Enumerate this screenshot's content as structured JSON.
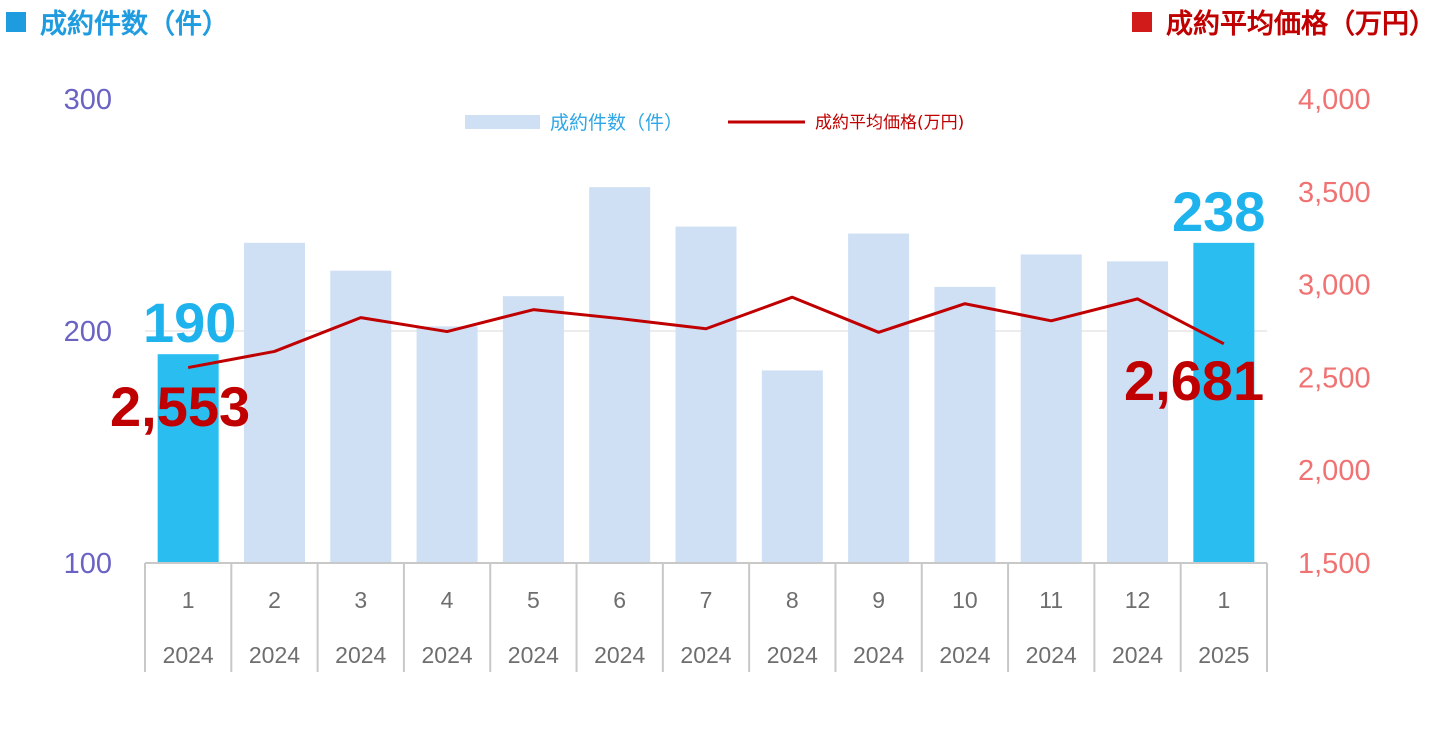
{
  "header": {
    "left_title": "成約件数（件）",
    "left_color": "#1f9be0",
    "right_title": "成約平均価格（万円）",
    "right_color": "#c00000"
  },
  "chart_data": {
    "type": "bar",
    "categories": [
      "1",
      "2",
      "3",
      "4",
      "5",
      "6",
      "7",
      "8",
      "9",
      "10",
      "11",
      "12",
      "1"
    ],
    "years": [
      "2024",
      "2024",
      "2024",
      "2024",
      "2024",
      "2024",
      "2024",
      "2024",
      "2024",
      "2024",
      "2024",
      "2024",
      "2025"
    ],
    "series": [
      {
        "name": "成約件数（件）",
        "type": "bar",
        "axis": "left",
        "values": [
          190,
          238,
          226,
          202,
          215,
          262,
          245,
          183,
          242,
          219,
          233,
          230,
          238
        ],
        "color": "#cfdff4",
        "highlight_color": "#29bdf0",
        "highlight_indices": [
          0,
          12
        ]
      },
      {
        "name": "成約平均価格(万円)",
        "type": "line",
        "axis": "right",
        "values": [
          2553,
          2640,
          2822,
          2747,
          2865,
          2817,
          2762,
          2932,
          2743,
          2897,
          2805,
          2923,
          2681
        ],
        "color": "#c00000"
      }
    ],
    "y_left": {
      "min": 100,
      "max": 300,
      "ticks": [
        "100",
        "200",
        "300"
      ]
    },
    "y_right": {
      "min": 1500,
      "max": 4000,
      "ticks": [
        "1,500",
        "2,000",
        "2,500",
        "3,000",
        "3,500",
        "4,000"
      ]
    },
    "gridline_at_left": 200,
    "legend_placement": "top-center",
    "callouts": {
      "first_bar": "190",
      "last_bar": "238",
      "first_line": "2,553",
      "last_line": "2,681"
    }
  }
}
